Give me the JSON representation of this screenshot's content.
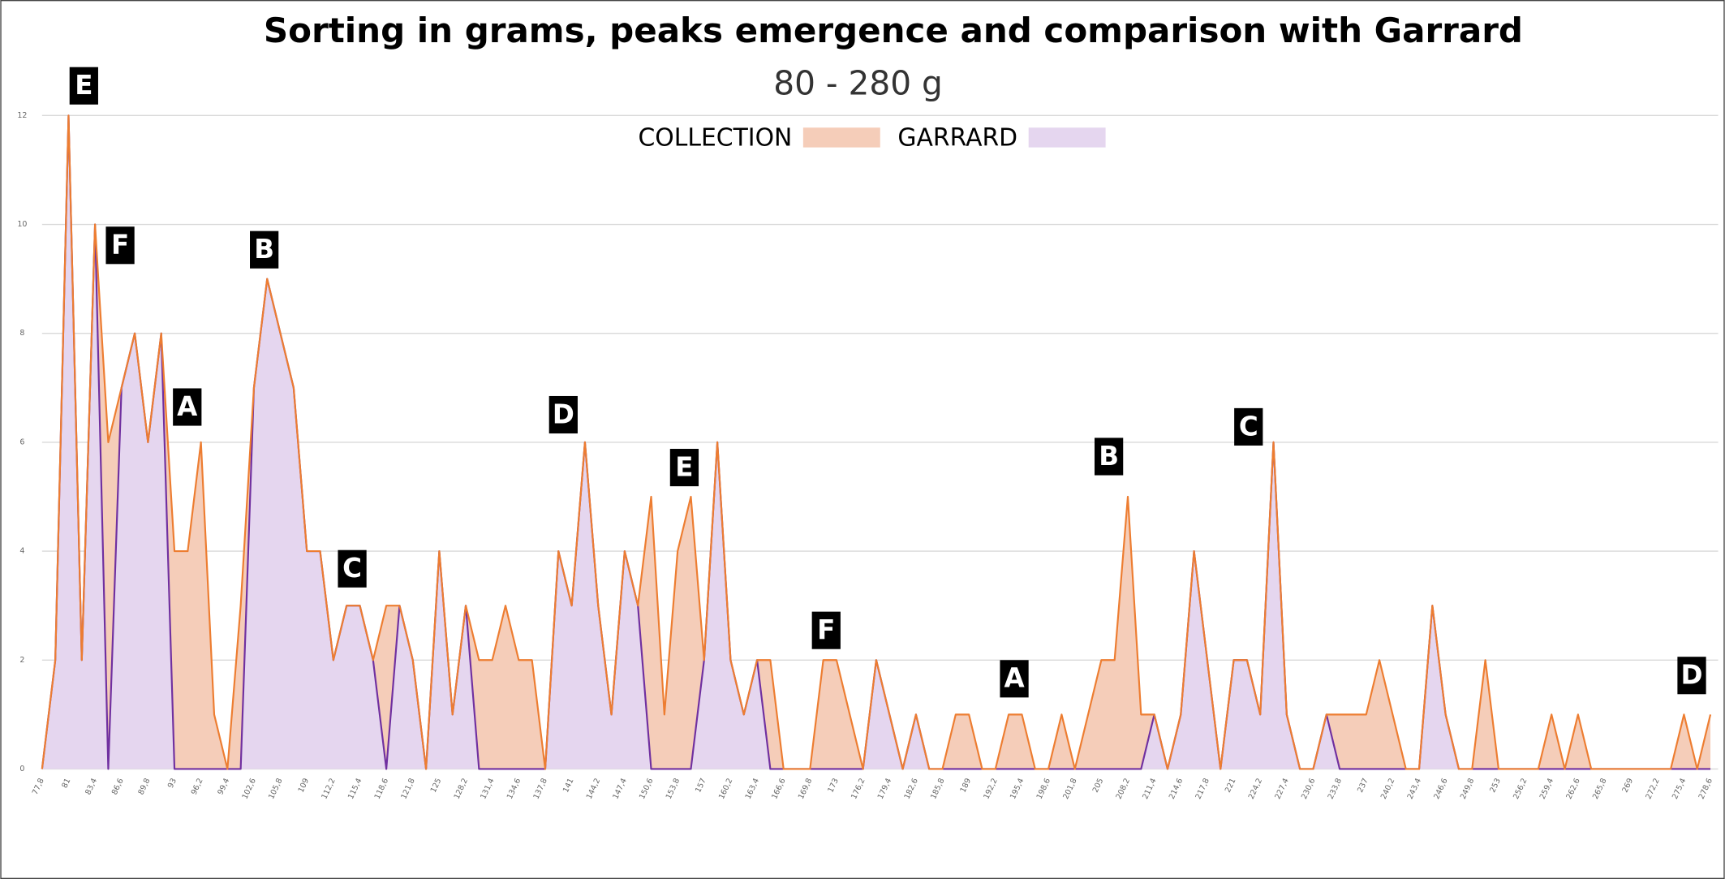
{
  "chart_data": {
    "type": "area",
    "title": "Sorting in grams, peaks emergence and comparison with Garrard",
    "subtitle": "80 - 280 g",
    "categories": [
      "77,8",
      null,
      "81",
      null,
      "83,4",
      null,
      "86,6",
      null,
      "89,8",
      null,
      "93",
      null,
      "96,2",
      null,
      "99,4",
      null,
      "102,6",
      null,
      "105,8",
      null,
      "109",
      null,
      "112,2",
      null,
      "115,4",
      null,
      "118,6",
      null,
      "121,8",
      null,
      "125",
      null,
      "128,2",
      null,
      "131,4",
      null,
      "134,6",
      null,
      "137,8",
      null,
      "141",
      null,
      "144,2",
      null,
      "147,4",
      null,
      "150,6",
      null,
      "153,8",
      null,
      "157",
      null,
      "160,2",
      null,
      "163,4",
      null,
      "166,6",
      null,
      "169,8",
      null,
      "173",
      null,
      "176,2",
      null,
      "179,4",
      null,
      "182,6",
      null,
      "185,8",
      null,
      "189",
      null,
      "192,2",
      null,
      "195,4",
      null,
      "198,6",
      null,
      "201,8",
      null,
      "205",
      null,
      "208,2",
      null,
      "211,4",
      null,
      "214,6",
      null,
      "217,8",
      null,
      "221",
      null,
      "224,2",
      null,
      "227,4",
      null,
      "230,6",
      null,
      "233,8",
      null,
      "237",
      null,
      "240,2",
      null,
      "243,4",
      null,
      "246,6",
      null,
      "249,8",
      null,
      "253",
      null,
      "256,2",
      null,
      "259,4",
      null,
      "262,6",
      null,
      "265,8",
      null,
      "269",
      null,
      "272,2",
      null,
      "275,4",
      null,
      "278,6"
    ],
    "series": [
      {
        "name": "COLLECTION",
        "color": "#ed7d31",
        "fill": "#f5cdb9",
        "values": [
          0,
          2,
          12,
          2,
          10,
          6,
          7,
          8,
          6,
          8,
          4,
          4,
          6,
          1,
          0,
          3,
          7,
          9,
          8,
          7,
          4,
          4,
          2,
          3,
          3,
          2,
          3,
          3,
          2,
          0,
          4,
          1,
          3,
          2,
          2,
          3,
          2,
          2,
          0,
          4,
          3,
          6,
          3,
          1,
          4,
          3,
          5,
          1,
          4,
          5,
          2,
          6,
          2,
          1,
          2,
          2,
          0,
          0,
          0,
          2,
          2,
          1,
          0,
          2,
          1,
          0,
          1,
          0,
          0,
          1,
          1,
          0,
          0,
          1,
          1,
          0,
          0,
          1,
          0,
          1,
          2,
          2,
          5,
          1,
          1,
          0,
          1,
          4,
          2,
          0,
          2,
          2,
          1,
          6,
          1,
          0,
          0,
          1,
          1,
          1,
          1,
          2,
          1,
          0,
          0,
          3,
          1,
          0,
          0,
          2,
          0,
          0,
          0,
          0,
          1,
          0,
          1,
          0,
          0,
          0,
          0,
          0,
          0,
          0,
          1,
          0,
          1
        ]
      },
      {
        "name": "GARRARD",
        "color": "#7030a0",
        "fill": "#e5d6ef",
        "values": [
          0,
          2,
          12,
          2,
          10,
          0,
          7,
          8,
          6,
          8,
          0,
          0,
          0,
          0,
          0,
          0,
          7,
          9,
          8,
          7,
          4,
          4,
          2,
          3,
          3,
          2,
          0,
          3,
          2,
          0,
          4,
          1,
          3,
          0,
          0,
          0,
          0,
          0,
          0,
          4,
          3,
          6,
          3,
          1,
          4,
          3,
          0,
          0,
          0,
          0,
          2,
          6,
          2,
          1,
          2,
          0,
          0,
          0,
          0,
          0,
          0,
          0,
          0,
          2,
          1,
          0,
          1,
          0,
          0,
          0,
          0,
          0,
          0,
          0,
          0,
          0,
          0,
          0,
          0,
          0,
          0,
          0,
          0,
          0,
          1,
          0,
          1,
          4,
          2,
          0,
          2,
          2,
          1,
          6,
          1,
          0,
          0,
          1,
          0,
          0,
          0,
          0,
          0,
          0,
          0,
          3,
          1,
          0,
          0,
          0,
          0,
          0,
          0,
          0,
          0,
          0,
          0,
          0,
          0,
          0,
          0,
          0,
          0,
          0,
          0,
          0,
          0
        ]
      }
    ],
    "annotations": [
      "E",
      "F",
      "B",
      "A",
      "C",
      "D",
      "E",
      "F",
      "A",
      "B",
      "C",
      "D"
    ],
    "ylim": [
      0,
      12
    ],
    "yticks": [
      0,
      2,
      4,
      6,
      8,
      10,
      12
    ],
    "grid": true
  }
}
